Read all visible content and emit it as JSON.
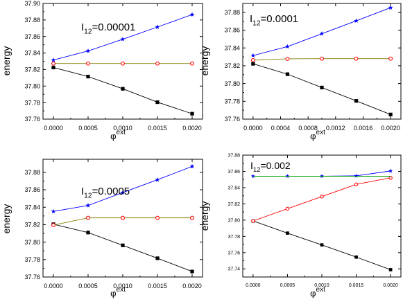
{
  "chart_data": [
    {
      "type": "line",
      "annotation": {
        "main": "I",
        "sub": "12",
        "rest": "=0.00001"
      },
      "xlabel": {
        "main": "φ",
        "sup": "ext"
      },
      "ylabel": "energy",
      "xlim": [
        -0.00015,
        0.00215
      ],
      "ylim": [
        37.76,
        37.9
      ],
      "xticks": [
        0.0,
        0.0005,
        0.001,
        0.0015,
        0.002
      ],
      "xtick_labels": [
        "0.0000",
        "0.0005",
        "0.0010",
        "0.0015",
        "0.0020"
      ],
      "yticks": [
        37.76,
        37.78,
        37.8,
        37.82,
        37.84,
        37.86,
        37.88,
        37.9
      ],
      "ytick_labels": [
        "37.76",
        "37.78",
        "37.80",
        "37.82",
        "37.84",
        "37.86",
        "37.88",
        "37.90"
      ],
      "x": [
        0.0,
        0.0005,
        0.001,
        0.0015,
        0.002
      ],
      "series": [
        {
          "values": [
            37.8225,
            37.8115,
            37.7967,
            37.7805,
            37.7665
          ],
          "color": "#000000",
          "marker": "square"
        },
        {
          "values": [
            37.8273,
            37.8273,
            37.8273,
            37.8273,
            37.8273
          ],
          "color": "#ff0000",
          "marker": "circle",
          "line_color": "#808000"
        },
        {
          "values": [
            37.8315,
            37.8425,
            37.8567,
            37.8715,
            37.8865
          ],
          "color": "#0000ff",
          "marker": "star"
        }
      ]
    },
    {
      "type": "line",
      "annotation": {
        "main": "I",
        "sub": "12",
        "rest": "=0.0001"
      },
      "xlabel": {
        "main": "φ",
        "sup": "ext"
      },
      "ylabel": "energy",
      "xlim": [
        -0.00015,
        0.00215
      ],
      "ylim": [
        37.76,
        37.89
      ],
      "xticks": [
        0.0,
        0.0004,
        0.0008,
        0.0012,
        0.0016,
        0.002
      ],
      "xtick_labels": [
        "0.0000",
        "0.0004",
        "0.0008",
        "0.0012",
        "0.0016",
        "0.0020"
      ],
      "yticks": [
        37.76,
        37.78,
        37.8,
        37.82,
        37.84,
        37.86,
        37.88
      ],
      "ytick_labels": [
        "37.76",
        "37.78",
        "37.80",
        "37.82",
        "37.84",
        "37.86",
        "37.88"
      ],
      "x": [
        0.0,
        0.0005,
        0.001,
        0.0015,
        0.002
      ],
      "series": [
        {
          "values": [
            37.8222,
            37.8105,
            37.7955,
            37.7805,
            37.7652
          ],
          "color": "#000000",
          "marker": "square"
        },
        {
          "values": [
            37.8262,
            37.8278,
            37.828,
            37.828,
            37.828
          ],
          "color": "#ff0000",
          "marker": "circle",
          "line_color": "#808000"
        },
        {
          "values": [
            37.8315,
            37.8415,
            37.856,
            37.8705,
            37.8853
          ],
          "color": "#0000ff",
          "marker": "star"
        }
      ]
    },
    {
      "type": "line",
      "annotation": {
        "main": "I",
        "sub": "12",
        "rest": "=0.0005"
      },
      "xlabel": {
        "main": "φ",
        "sup": "ext"
      },
      "ylabel": "energy",
      "xlim": [
        -0.00015,
        0.00215
      ],
      "ylim": [
        37.76,
        37.895
      ],
      "xticks": [
        0.0,
        0.0005,
        0.001,
        0.0015,
        0.002
      ],
      "xtick_labels": [
        "0.0000",
        "0.0005",
        "0.0010",
        "0.0015",
        "0.0020"
      ],
      "yticks": [
        37.76,
        37.78,
        37.8,
        37.82,
        37.84,
        37.86,
        37.88
      ],
      "ytick_labels": [
        "37.76",
        "37.78",
        "37.80",
        "37.82",
        "37.84",
        "37.86",
        "37.88"
      ],
      "x": [
        0.0,
        0.0005,
        0.001,
        0.0015,
        0.002
      ],
      "series": [
        {
          "values": [
            37.8205,
            37.811,
            37.7963,
            37.7815,
            37.7663
          ],
          "color": "#000000",
          "marker": "square"
        },
        {
          "values": [
            37.8195,
            37.8278,
            37.8278,
            37.8278,
            37.8278
          ],
          "color": "#ff0000",
          "marker": "circle",
          "line_color": "#808000"
        },
        {
          "values": [
            37.8352,
            37.842,
            37.8568,
            37.8715,
            37.8868
          ],
          "color": "#0000ff",
          "marker": "star"
        }
      ]
    },
    {
      "type": "line",
      "annotation": {
        "main": "I",
        "sub": "12",
        "rest": "=0.002"
      },
      "xlabel": {
        "main": "φ",
        "sup": "ext"
      },
      "ylabel": "energy",
      "xlim": [
        -0.00015,
        0.00215
      ],
      "ylim": [
        37.73,
        37.88
      ],
      "xticks": [
        0.0,
        0.0005,
        0.001,
        0.0015,
        0.002
      ],
      "xtick_labels": [
        "0.0000",
        "0.0005",
        "0.0010",
        "0.0015",
        "0.0020"
      ],
      "yticks": [
        37.74,
        37.76,
        37.78,
        37.8,
        37.82,
        37.84,
        37.86,
        37.88
      ],
      "ytick_labels": [
        "37.74",
        "37.76",
        "37.78",
        "37.80",
        "37.82",
        "37.84",
        "37.86",
        "37.88"
      ],
      "x": [
        0.0,
        0.0005,
        0.001,
        0.0015,
        0.002
      ],
      "series": [
        {
          "values": [
            37.799,
            37.784,
            37.7695,
            37.7545,
            37.739
          ],
          "color": "#000000",
          "marker": "square"
        },
        {
          "values": [
            37.799,
            37.814,
            37.829,
            37.844,
            37.852
          ],
          "color": "#ff0000",
          "marker": "circle",
          "line_color": "#ff0000"
        },
        {
          "values": [
            37.854,
            37.854,
            37.854,
            37.8545,
            37.8605
          ],
          "color": "#0000ff",
          "marker": "star"
        },
        {
          "values": [
            37.854,
            37.854,
            37.854,
            37.854,
            37.854
          ],
          "color": "#00a000",
          "marker": "none"
        }
      ]
    }
  ]
}
